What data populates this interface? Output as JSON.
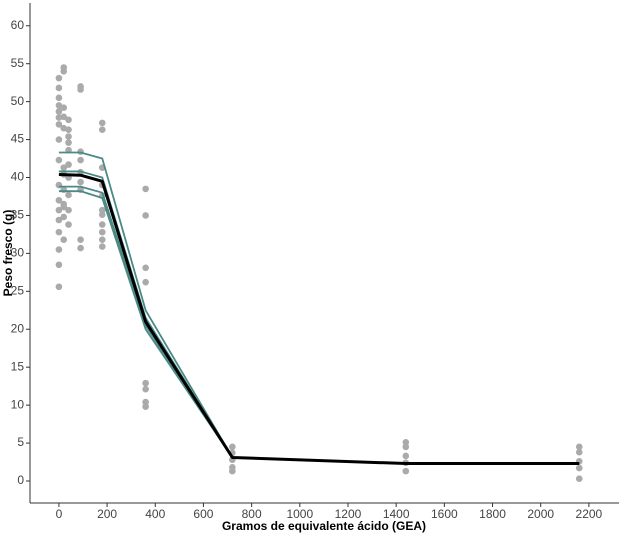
{
  "chart_data": {
    "type": "scatter",
    "x_label": "Gramos de equivalente ácido (GEA)",
    "y_label": "Peso fresco (g)",
    "xlim": [
      -120,
      2325
    ],
    "ylim": [
      -2.9,
      63
    ],
    "xticks": [
      0,
      200,
      400,
      600,
      800,
      1000,
      1200,
      1400,
      1600,
      1800,
      2000,
      2200
    ],
    "yticks": [
      0,
      5,
      10,
      15,
      20,
      25,
      30,
      35,
      40,
      45,
      50,
      55,
      60
    ],
    "grid": false,
    "series": [
      {
        "type": "scatter",
        "color": "#aaaaaa",
        "x": [
          0,
          0,
          0,
          0,
          0,
          0,
          0,
          0,
          0,
          0,
          0,
          0,
          0,
          0,
          0,
          0,
          0,
          20,
          20,
          20,
          20,
          20,
          20,
          20,
          20,
          20,
          20,
          20,
          20,
          40,
          40,
          40,
          40,
          40,
          40,
          40,
          40,
          40,
          40,
          90,
          90,
          90,
          90,
          90,
          90,
          90,
          90,
          90,
          180,
          180,
          180,
          180,
          180,
          180,
          180,
          180,
          180,
          180,
          180,
          360,
          360,
          360,
          360,
          360,
          360,
          360,
          360,
          720,
          720,
          720,
          720,
          720,
          1440,
          1440,
          1440,
          1440,
          1440,
          2160,
          2160,
          2160,
          2160,
          2160
        ],
        "values": [
          53.1,
          51.8,
          50.5,
          49.5,
          48.7,
          47.9,
          47,
          45,
          42.3,
          39,
          37,
          35.7,
          34.4,
          32.8,
          30.5,
          28.5,
          25.6,
          54.5,
          54,
          49.2,
          48,
          46.5,
          41.3,
          40.4,
          38.4,
          36.5,
          36.1,
          34.8,
          31.8,
          47.6,
          46.3,
          45.4,
          44.6,
          43.6,
          41.7,
          40,
          37.7,
          35.7,
          33.8,
          52,
          51.6,
          43.4,
          42.3,
          40.7,
          39.4,
          38.4,
          31.8,
          30.7,
          47.2,
          46.3,
          41.3,
          39,
          37.6,
          35.7,
          35.1,
          33.8,
          32.8,
          31.8,
          30.9,
          38.5,
          35,
          28.1,
          26.2,
          12.9,
          12.1,
          10.4,
          9.8,
          4.5,
          3.7,
          2.8,
          1.8,
          1.3,
          5.1,
          4.5,
          3.3,
          2.4,
          1.3,
          4.5,
          3.8,
          2.6,
          1.7,
          0.3
        ]
      },
      {
        "type": "line",
        "color": "#4a8a87",
        "x": [
          0,
          90,
          180,
          360,
          720,
          1440,
          2160
        ],
        "values": [
          43.3,
          43.3,
          42.5,
          22.5,
          3.1,
          2.3,
          2.3
        ]
      },
      {
        "type": "line",
        "color": "#4a8a87",
        "x": [
          0,
          90,
          180,
          360,
          720,
          1440,
          2160
        ],
        "values": [
          40.8,
          40.8,
          40,
          21.5,
          3.1,
          2.3,
          2.3
        ]
      },
      {
        "type": "line",
        "color": "#4a8a87",
        "x": [
          0,
          90,
          180,
          360,
          720,
          1440,
          2160
        ],
        "values": [
          38.8,
          38.8,
          38,
          20.5,
          3.1,
          2.3,
          2.3
        ]
      },
      {
        "type": "line",
        "color": "#4a8a87",
        "x": [
          0,
          90,
          180,
          360,
          720,
          1440,
          2160
        ],
        "values": [
          38.2,
          38.2,
          37.3,
          20,
          3.1,
          2.3,
          2.3
        ]
      },
      {
        "type": "line",
        "color": "#000000",
        "width": 3,
        "x": [
          0,
          90,
          180,
          360,
          720,
          1440,
          2160
        ],
        "values": [
          40.4,
          40.3,
          39.5,
          21,
          3.1,
          2.3,
          2.3
        ]
      }
    ]
  }
}
